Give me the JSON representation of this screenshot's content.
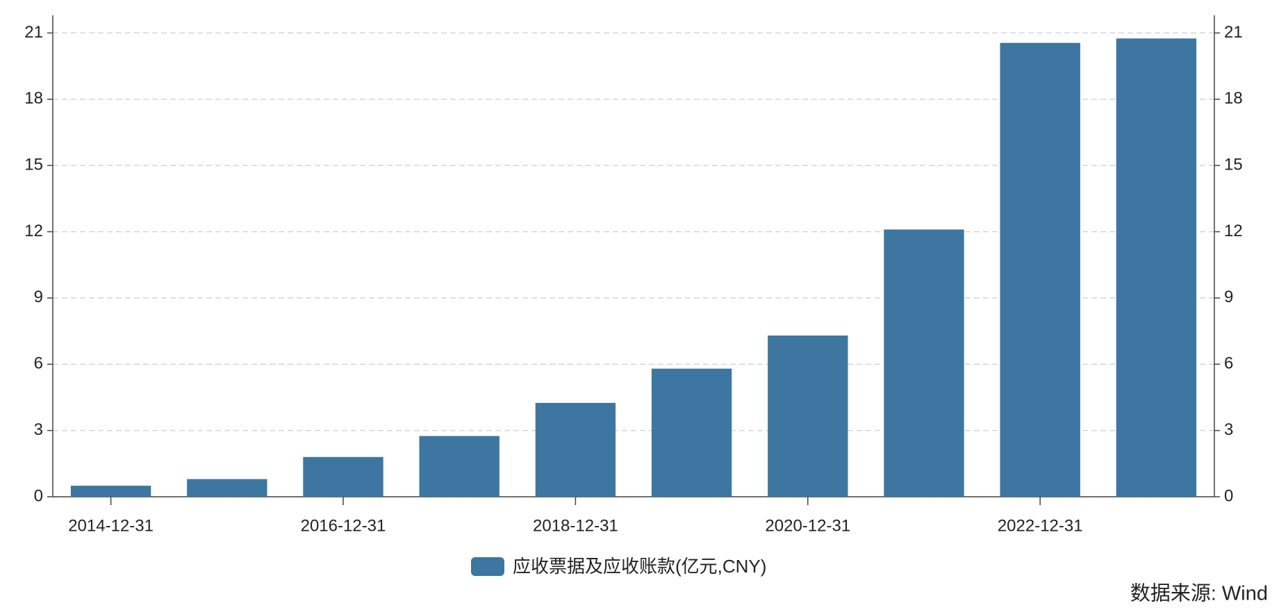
{
  "chart_data": {
    "type": "bar",
    "categories": [
      "2014-12-31",
      null,
      "2016-12-31",
      null,
      "2018-12-31",
      null,
      "2020-12-31",
      null,
      "2022-12-31",
      null
    ],
    "series": [
      {
        "name": "应收票据及应收账款(亿元,CNY)",
        "color": "#3d76a0",
        "values": [
          0.5,
          0.8,
          1.8,
          2.75,
          4.25,
          5.8,
          7.3,
          12.1,
          20.55,
          20.75
        ]
      }
    ],
    "ylim": [
      0,
      21.8
    ],
    "yticks": [
      0,
      3,
      6,
      9,
      12,
      15,
      18,
      21
    ],
    "y2lim": [
      0,
      21.8
    ],
    "y2ticks": [
      0,
      3,
      6,
      9,
      12,
      15,
      18,
      21
    ],
    "grid": true,
    "legend": "bottom",
    "source": "数据来源: Wind",
    "source_color": "#c0281e"
  }
}
